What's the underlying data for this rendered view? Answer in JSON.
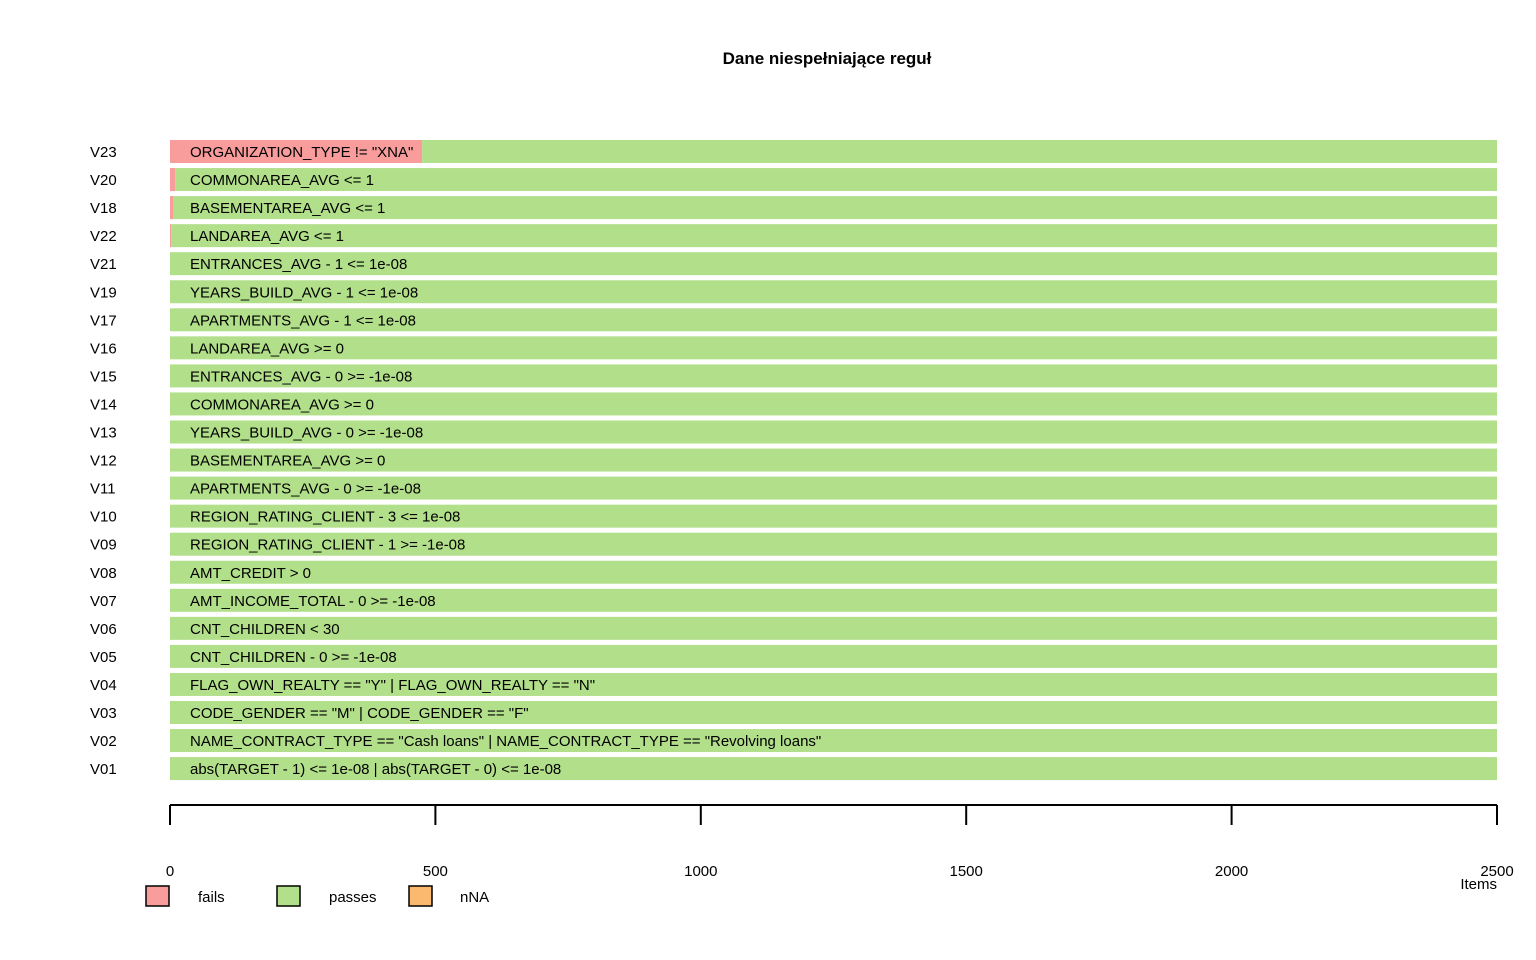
{
  "chart_data": {
    "type": "bar",
    "orientation": "horizontal",
    "stacked": true,
    "title": "Dane niespełniające reguł",
    "xlabel": "Items",
    "xlim": [
      0,
      2500
    ],
    "xticks": [
      0,
      500,
      1000,
      1500,
      2000,
      2500
    ],
    "total_items": 2500,
    "legend": {
      "placement": "bottom-left",
      "entries": [
        {
          "name": "fails",
          "color": "#f89c9c"
        },
        {
          "name": "passes",
          "color": "#b2df8a"
        },
        {
          "name": "nNA",
          "color": "#fbb970"
        }
      ]
    },
    "rows": [
      {
        "id": "V23",
        "rule": "ORGANIZATION_TYPE != \"XNA\"",
        "fails": 475,
        "passes": 2025,
        "nNA": 0
      },
      {
        "id": "V20",
        "rule": "COMMONAREA_AVG <= 1",
        "fails": 10,
        "passes": 2490,
        "nNA": 0
      },
      {
        "id": "V18",
        "rule": "BASEMENTAREA_AVG <= 1",
        "fails": 7,
        "passes": 2493,
        "nNA": 0
      },
      {
        "id": "V22",
        "rule": "LANDAREA_AVG <= 1",
        "fails": 2,
        "passes": 2498,
        "nNA": 0
      },
      {
        "id": "V21",
        "rule": "ENTRANCES_AVG - 1 <= 1e-08",
        "fails": 0,
        "passes": 2500,
        "nNA": 0
      },
      {
        "id": "V19",
        "rule": "YEARS_BUILD_AVG - 1 <= 1e-08",
        "fails": 0,
        "passes": 2500,
        "nNA": 0
      },
      {
        "id": "V17",
        "rule": "APARTMENTS_AVG - 1 <= 1e-08",
        "fails": 0,
        "passes": 2500,
        "nNA": 0
      },
      {
        "id": "V16",
        "rule": "LANDAREA_AVG >= 0",
        "fails": 0,
        "passes": 2500,
        "nNA": 0
      },
      {
        "id": "V15",
        "rule": "ENTRANCES_AVG - 0 >= -1e-08",
        "fails": 0,
        "passes": 2500,
        "nNA": 0
      },
      {
        "id": "V14",
        "rule": "COMMONAREA_AVG >= 0",
        "fails": 0,
        "passes": 2500,
        "nNA": 0
      },
      {
        "id": "V13",
        "rule": "YEARS_BUILD_AVG - 0 >= -1e-08",
        "fails": 0,
        "passes": 2500,
        "nNA": 0
      },
      {
        "id": "V12",
        "rule": "BASEMENTAREA_AVG >= 0",
        "fails": 0,
        "passes": 2500,
        "nNA": 0
      },
      {
        "id": "V11",
        "rule": "APARTMENTS_AVG - 0 >= -1e-08",
        "fails": 0,
        "passes": 2500,
        "nNA": 0
      },
      {
        "id": "V10",
        "rule": "REGION_RATING_CLIENT - 3 <= 1e-08",
        "fails": 0,
        "passes": 2500,
        "nNA": 0
      },
      {
        "id": "V09",
        "rule": "REGION_RATING_CLIENT - 1 >= -1e-08",
        "fails": 0,
        "passes": 2500,
        "nNA": 0
      },
      {
        "id": "V08",
        "rule": "AMT_CREDIT > 0",
        "fails": 0,
        "passes": 2500,
        "nNA": 0
      },
      {
        "id": "V07",
        "rule": "AMT_INCOME_TOTAL - 0 >= -1e-08",
        "fails": 0,
        "passes": 2500,
        "nNA": 0
      },
      {
        "id": "V06",
        "rule": "CNT_CHILDREN < 30",
        "fails": 0,
        "passes": 2500,
        "nNA": 0
      },
      {
        "id": "V05",
        "rule": "CNT_CHILDREN - 0 >= -1e-08",
        "fails": 0,
        "passes": 2500,
        "nNA": 0
      },
      {
        "id": "V04",
        "rule": "FLAG_OWN_REALTY == \"Y\" | FLAG_OWN_REALTY == \"N\"",
        "fails": 0,
        "passes": 2500,
        "nNA": 0
      },
      {
        "id": "V03",
        "rule": "CODE_GENDER == \"M\" | CODE_GENDER == \"F\"",
        "fails": 0,
        "passes": 2500,
        "nNA": 0
      },
      {
        "id": "V02",
        "rule": "NAME_CONTRACT_TYPE == \"Cash loans\" | NAME_CONTRACT_TYPE == \"Revolving loans\"",
        "fails": 0,
        "passes": 2500,
        "nNA": 0
      },
      {
        "id": "V01",
        "rule": "abs(TARGET - 1) <= 1e-08 | abs(TARGET - 0) <= 1e-08",
        "fails": 0,
        "passes": 2500,
        "nNA": 0
      }
    ]
  }
}
